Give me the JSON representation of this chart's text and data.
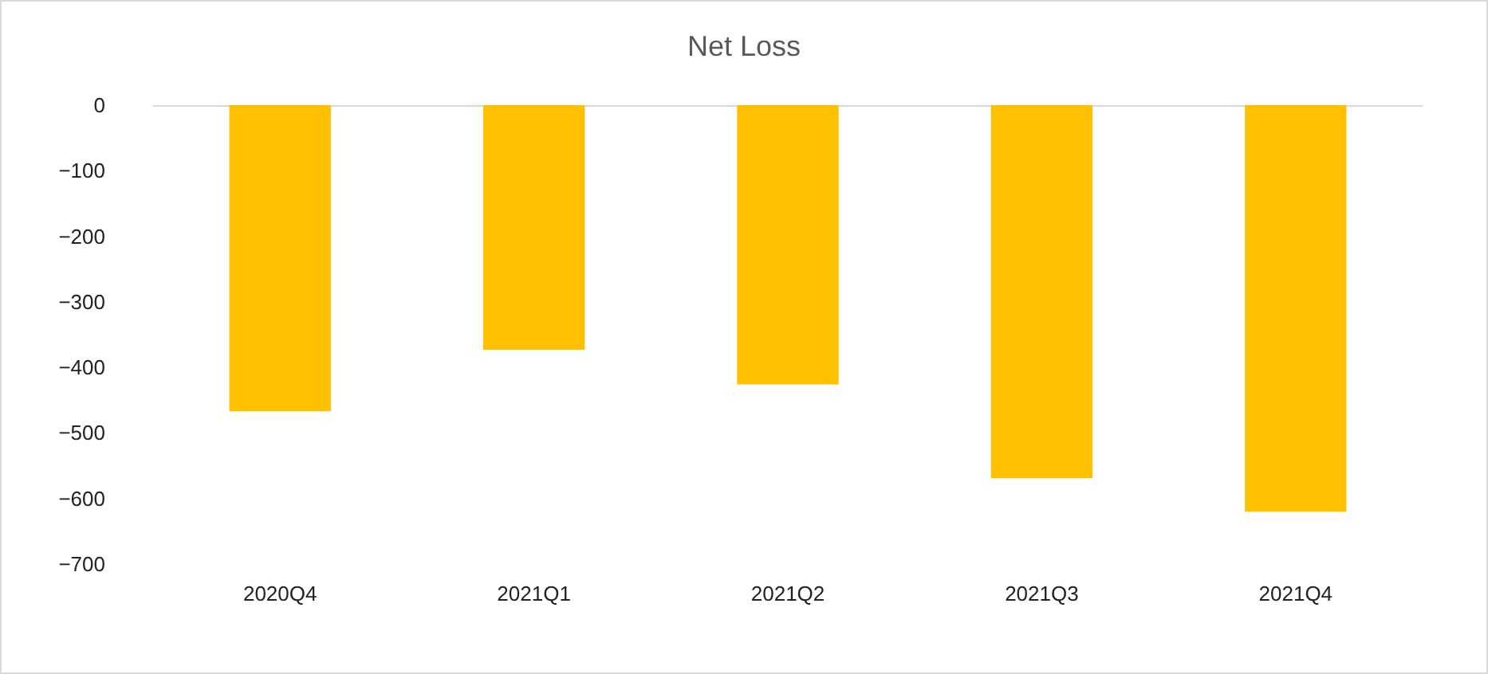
{
  "chart_data": {
    "type": "bar",
    "title": "Net Loss",
    "categories": [
      "2020Q4",
      "2021Q1",
      "2021Q2",
      "2021Q3",
      "2021Q4"
    ],
    "values": [
      -467,
      -373,
      -426,
      -569,
      -620
    ],
    "color": "#ffc000",
    "ylim": [
      -700,
      0
    ],
    "yticks": [
      -700,
      -600,
      -500,
      -400,
      -300,
      -200,
      -100,
      0
    ],
    "grid": false
  }
}
